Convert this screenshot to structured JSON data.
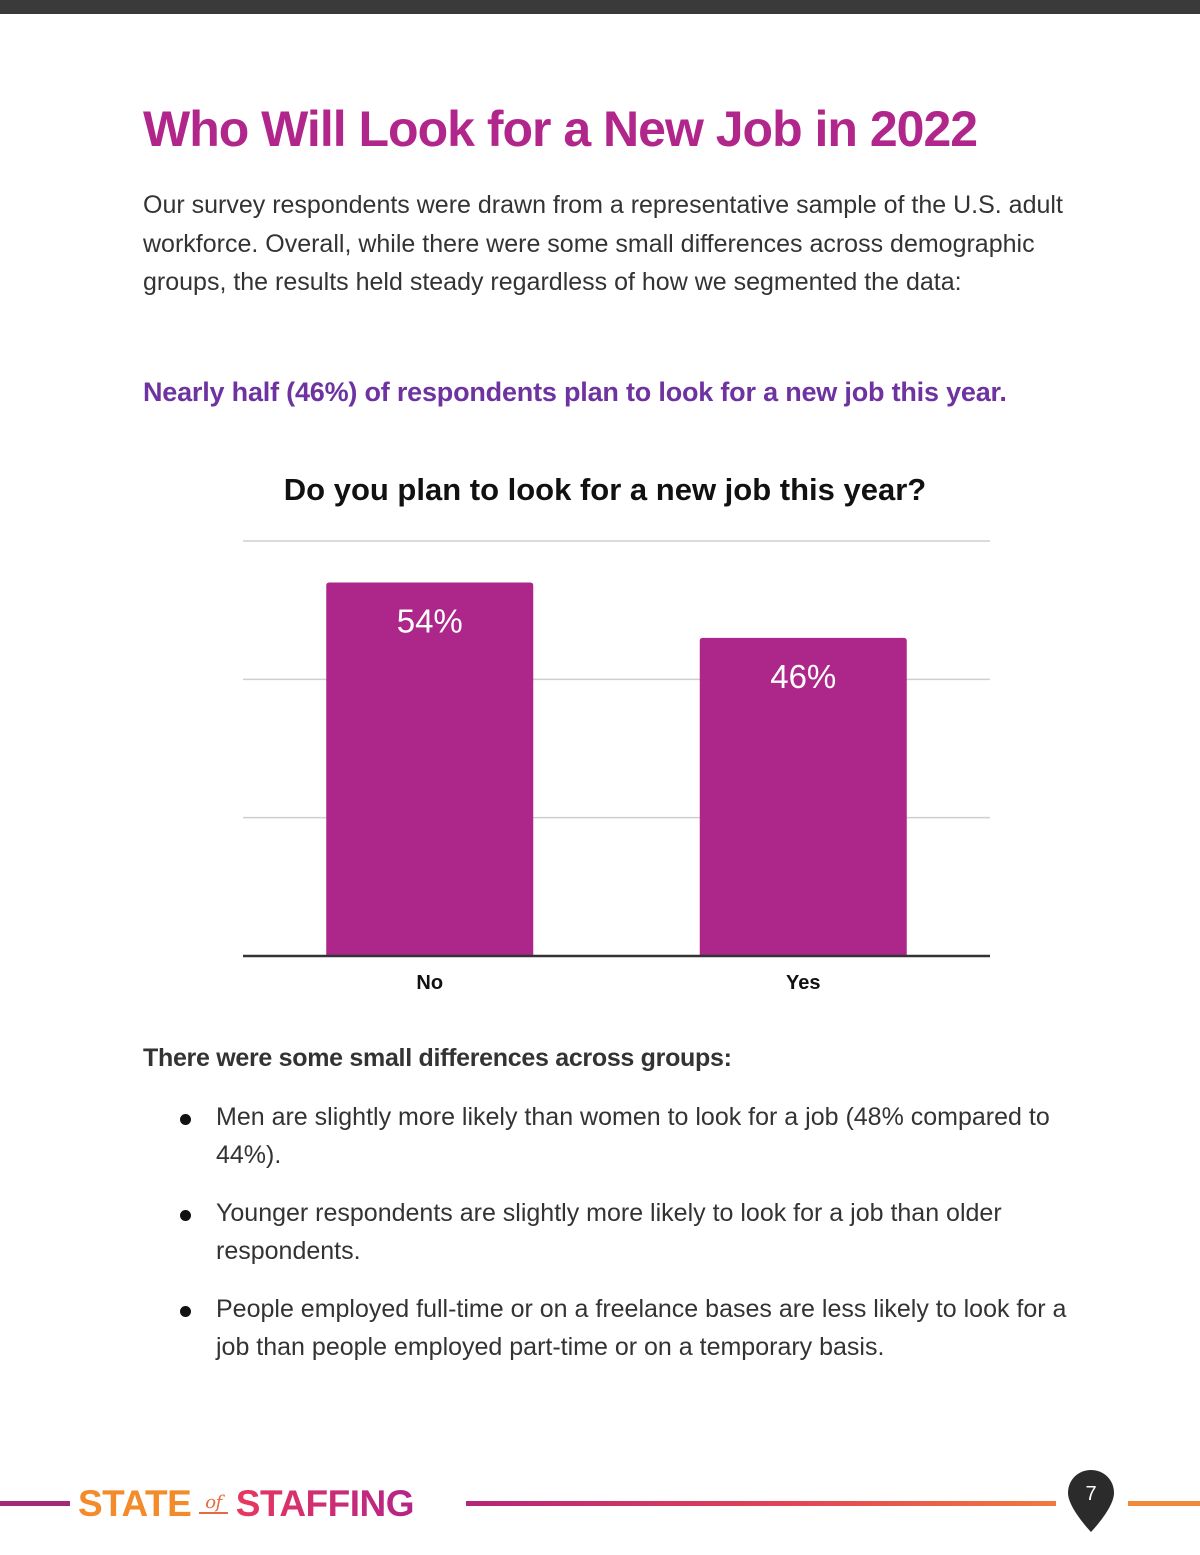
{
  "page": {
    "title": "Who Will Look for a New Job in 2022",
    "intro": "Our survey respondents were drawn from a representative sample of the U.S. adult workforce. Overall, while there were some small differences across demographic groups, the results held steady regardless of how we segmented the data:",
    "highlight": "Nearly half (46%) of respondents plan to look for a new job this year.",
    "section_heading": "There were some small differences across groups:",
    "bullets": [
      "Men are slightly more likely than women to look for a job (48% compared to 44%).",
      "Younger respondents are slightly more likely to look for a job than older respondents.",
      "People employed full-time or on a freelance bases are less likely to look for a job than people employed part-time or on a temporary basis."
    ],
    "page_number": "7"
  },
  "footer": {
    "logo_state": "STATE",
    "logo_of": "of",
    "logo_staffing": "STAFFING"
  },
  "colors": {
    "title": "#b1268b",
    "highlight": "#6e33a0",
    "bar": "#ad268a"
  },
  "chart_data": {
    "type": "bar",
    "title": "Do you plan to look for a new job this year?",
    "categories": [
      "No",
      "Yes"
    ],
    "values": [
      54,
      46
    ],
    "data_labels": [
      "54%",
      "46%"
    ],
    "xlabel": "",
    "ylabel": "",
    "ylim": [
      0,
      60
    ],
    "grid": true,
    "legend": "none"
  }
}
